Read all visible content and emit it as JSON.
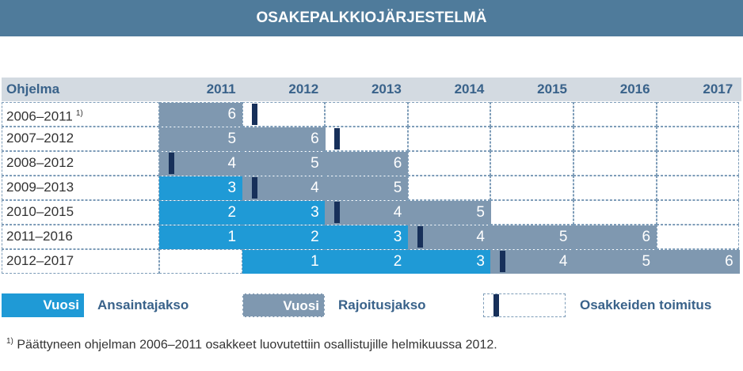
{
  "title": "OSAKEPALKKIOJÄRJESTELMÄ",
  "header": {
    "program_label": "Ohjelma"
  },
  "years": [
    "2011",
    "2012",
    "2013",
    "2014",
    "2015",
    "2016",
    "2017"
  ],
  "programs": [
    {
      "label": "2006–2011",
      "note": "1)",
      "cells": [
        {
          "col": 0,
          "type": "restrict",
          "text": "6"
        }
      ],
      "marker_col": 1,
      "marker_pos": "start"
    },
    {
      "label": "2007–2012",
      "note": "",
      "cells": [
        {
          "col": 0,
          "type": "restrict",
          "text": "5"
        },
        {
          "col": 1,
          "type": "restrict",
          "text": "6"
        }
      ],
      "marker_col": 2,
      "marker_pos": "start"
    },
    {
      "label": "2008–2012",
      "note": "",
      "cells": [
        {
          "col": 0,
          "type": "restrict",
          "text": "4"
        },
        {
          "col": 1,
          "type": "restrict",
          "text": "5"
        },
        {
          "col": 2,
          "type": "restrict",
          "text": "6"
        }
      ],
      "marker_col": 0,
      "marker_pos": "start"
    },
    {
      "label": "2009–2013",
      "note": "",
      "cells": [
        {
          "col": 0,
          "type": "earn",
          "text": "3"
        },
        {
          "col": 1,
          "type": "restrict",
          "text": "4"
        },
        {
          "col": 2,
          "type": "restrict",
          "text": "5"
        }
      ],
      "marker_col": 1,
      "marker_pos": "start"
    },
    {
      "label": "2010–2015",
      "note": "",
      "cells": [
        {
          "col": 0,
          "type": "earn",
          "text": "2"
        },
        {
          "col": 1,
          "type": "earn",
          "text": "3"
        },
        {
          "col": 2,
          "type": "restrict",
          "text": "4"
        },
        {
          "col": 3,
          "type": "restrict",
          "text": "5"
        }
      ],
      "marker_col": 2,
      "marker_pos": "start"
    },
    {
      "label": "2011–2016",
      "note": "",
      "cells": [
        {
          "col": 0,
          "type": "earn",
          "text": "1"
        },
        {
          "col": 1,
          "type": "earn",
          "text": "2"
        },
        {
          "col": 2,
          "type": "earn",
          "text": "3"
        },
        {
          "col": 3,
          "type": "restrict",
          "text": "4"
        },
        {
          "col": 4,
          "type": "restrict",
          "text": "5"
        },
        {
          "col": 5,
          "type": "restrict",
          "text": "6"
        }
      ],
      "marker_col": 3,
      "marker_pos": "start"
    },
    {
      "label": "2012–2017",
      "note": "",
      "cells": [
        {
          "col": 1,
          "type": "earn",
          "text": "1"
        },
        {
          "col": 2,
          "type": "earn",
          "text": "2"
        },
        {
          "col": 3,
          "type": "earn",
          "text": "3"
        },
        {
          "col": 4,
          "type": "restrict",
          "text": "4"
        },
        {
          "col": 5,
          "type": "restrict",
          "text": "5"
        },
        {
          "col": 6,
          "type": "restrict",
          "text": "6"
        }
      ],
      "marker_col": 4,
      "marker_pos": "start"
    }
  ],
  "legend": {
    "earn_box_text": "Vuosi",
    "earn_label": "Ansaintajakso",
    "restrict_box_text": "Vuosi",
    "restrict_label": "Rajoitusjakso",
    "delivery_label": "Osakkeiden toimitus"
  },
  "footnote": {
    "mark": "1)",
    "text": "Päättyneen ohjelman 2006–2011 osakkeet luovutettiin osallistujille helmikuussa 2012."
  },
  "colors": {
    "banner": "#4f7b9b",
    "earn": "#1f9ad6",
    "restrict": "#7f98b0",
    "marker": "#17305a",
    "header_bg": "#d3dae1",
    "header_text": "#39628a"
  }
}
